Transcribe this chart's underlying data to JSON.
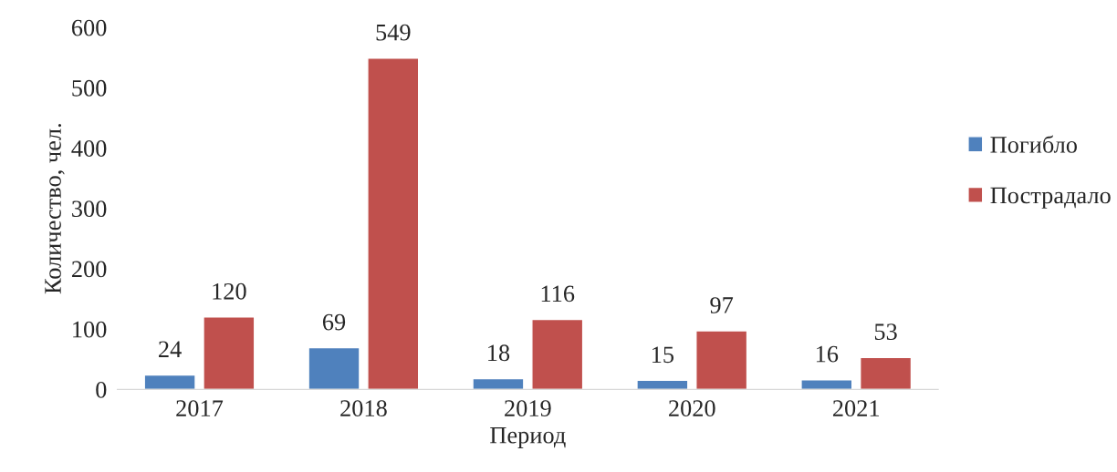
{
  "chart_data": {
    "type": "bar",
    "xlabel": "Период",
    "ylabel": "Количество, чел.",
    "categories": [
      "2017",
      "2018",
      "2019",
      "2020",
      "2021"
    ],
    "series": [
      {
        "name": "Погибло",
        "color": "#4f81bd",
        "values": [
          24,
          69,
          18,
          15,
          16
        ]
      },
      {
        "name": "Пострадало",
        "color": "#c0504d",
        "values": [
          120,
          549,
          116,
          97,
          53
        ]
      }
    ],
    "ylim": [
      0,
      600
    ],
    "yticks": [
      0,
      100,
      200,
      300,
      400,
      500,
      600
    ],
    "data_labels": true,
    "grid": false,
    "legend": "right"
  }
}
